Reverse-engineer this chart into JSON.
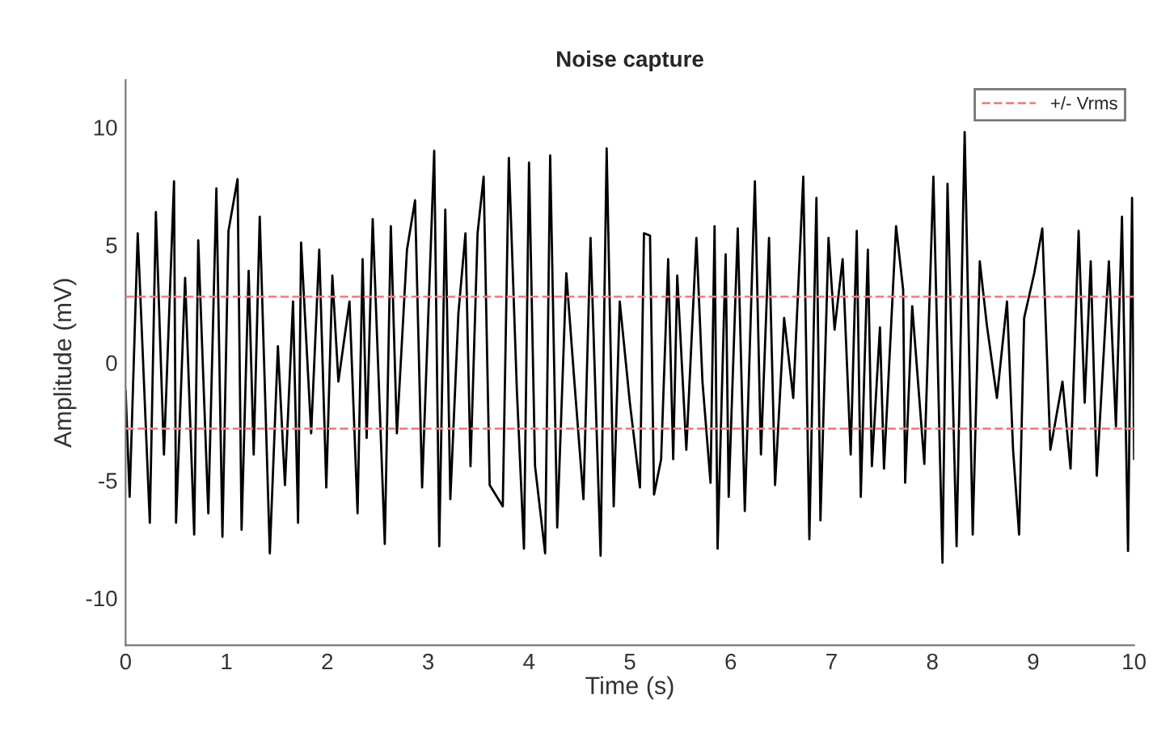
{
  "chart_data": {
    "type": "line",
    "title": "Noise capture",
    "xlabel": "Time (s)",
    "ylabel": "Amplitude (mV)",
    "xlim": [
      0,
      10
    ],
    "xticks": [
      0,
      1,
      2,
      3,
      4,
      5,
      6,
      7,
      8,
      9,
      10
    ],
    "ylim": [
      -12,
      12
    ],
    "yticks": [
      -10,
      -5,
      0,
      5,
      10
    ],
    "grid": false,
    "legend": "top right",
    "line_style": "solid",
    "marker": "none",
    "series": [
      {
        "color": "#000000",
        "x": [
          0.0,
          0.04,
          0.12,
          0.24,
          0.3,
          0.38,
          0.48,
          0.5,
          0.59,
          0.68,
          0.72,
          0.82,
          0.9,
          0.96,
          1.02,
          1.11,
          1.15,
          1.22,
          1.27,
          1.33,
          1.43,
          1.51,
          1.58,
          1.66,
          1.71,
          1.74,
          1.84,
          1.92,
          1.99,
          2.05,
          2.11,
          2.22,
          2.3,
          2.35,
          2.39,
          2.45,
          2.57,
          2.63,
          2.69,
          2.79,
          2.87,
          2.94,
          3.06,
          3.11,
          3.17,
          3.22,
          3.3,
          3.37,
          3.42,
          3.49,
          3.55,
          3.61,
          3.74,
          3.8,
          3.88,
          3.95,
          4.0,
          4.06,
          4.16,
          4.21,
          4.28,
          4.37,
          4.45,
          4.54,
          4.61,
          4.71,
          4.77,
          4.84,
          4.9,
          5.0,
          5.1,
          5.14,
          5.2,
          5.24,
          5.31,
          5.38,
          5.43,
          5.47,
          5.56,
          5.66,
          5.72,
          5.8,
          5.84,
          5.87,
          5.95,
          5.98,
          6.07,
          6.14,
          6.24,
          6.3,
          6.38,
          6.44,
          6.53,
          6.62,
          6.72,
          6.78,
          6.85,
          6.89,
          6.97,
          7.03,
          7.11,
          7.19,
          7.25,
          7.29,
          7.36,
          7.4,
          7.48,
          7.52,
          7.64,
          7.71,
          7.73,
          7.8,
          7.92,
          8.01,
          8.1,
          8.15,
          8.24,
          8.32,
          8.4,
          8.47,
          8.54,
          8.64,
          8.74,
          8.8,
          8.86,
          8.91,
          9.01,
          9.09,
          9.17,
          9.29,
          9.37,
          9.45,
          9.51,
          9.57,
          9.63,
          9.75,
          9.82,
          9.88,
          9.94,
          9.98,
          10.0
        ],
        "values": [
          -1.2,
          -5.7,
          5.5,
          -6.8,
          6.4,
          -3.9,
          7.7,
          -6.8,
          3.6,
          -7.3,
          5.2,
          -6.4,
          7.4,
          -7.4,
          5.6,
          7.8,
          -7.1,
          3.9,
          -3.9,
          6.2,
          -8.1,
          0.7,
          -5.2,
          2.6,
          -6.8,
          5.1,
          -3.0,
          4.8,
          -5.3,
          3.7,
          -0.8,
          2.6,
          -6.4,
          4.4,
          -3.2,
          6.1,
          -7.7,
          5.8,
          -3.0,
          4.8,
          6.9,
          -5.3,
          9.0,
          -7.8,
          6.5,
          -5.8,
          2.1,
          5.5,
          -4.4,
          5.5,
          7.9,
          -5.2,
          -6.1,
          8.7,
          -1.2,
          -7.9,
          8.5,
          -4.4,
          -8.1,
          8.8,
          -7.0,
          3.8,
          -0.8,
          -5.8,
          5.3,
          -8.2,
          9.1,
          -6.1,
          2.6,
          -1.7,
          -5.3,
          5.5,
          5.4,
          -5.6,
          -4.1,
          4.4,
          -4.1,
          3.7,
          -3.7,
          5.3,
          -0.8,
          -5.1,
          5.8,
          -7.9,
          4.6,
          -5.7,
          5.7,
          -6.3,
          7.7,
          -3.9,
          5.3,
          -5.2,
          1.9,
          -1.5,
          7.9,
          -7.5,
          7.0,
          -6.7,
          5.3,
          1.4,
          4.4,
          -3.9,
          5.6,
          -5.7,
          4.8,
          -4.4,
          1.5,
          -4.5,
          5.8,
          3.1,
          -5.1,
          2.4,
          -4.3,
          7.9,
          -8.5,
          7.6,
          -7.8,
          9.8,
          -7.3,
          4.3,
          1.6,
          -1.5,
          2.6,
          -3.7,
          -7.3,
          1.9,
          3.8,
          5.7,
          -3.7,
          -0.8,
          -4.5,
          5.6,
          -1.7,
          4.3,
          -4.8,
          4.3,
          -2.7,
          6.2,
          -8.0,
          7.0,
          -4.1
        ]
      }
    ],
    "ref_lines": [
      {
        "axis": "y",
        "value": 2.8,
        "label": "+/- Vrms",
        "color": "#f08080",
        "line_style": "dashed"
      },
      {
        "axis": "y",
        "value": -2.8,
        "label": null,
        "color": "#f08080",
        "line_style": "dashed"
      }
    ]
  }
}
